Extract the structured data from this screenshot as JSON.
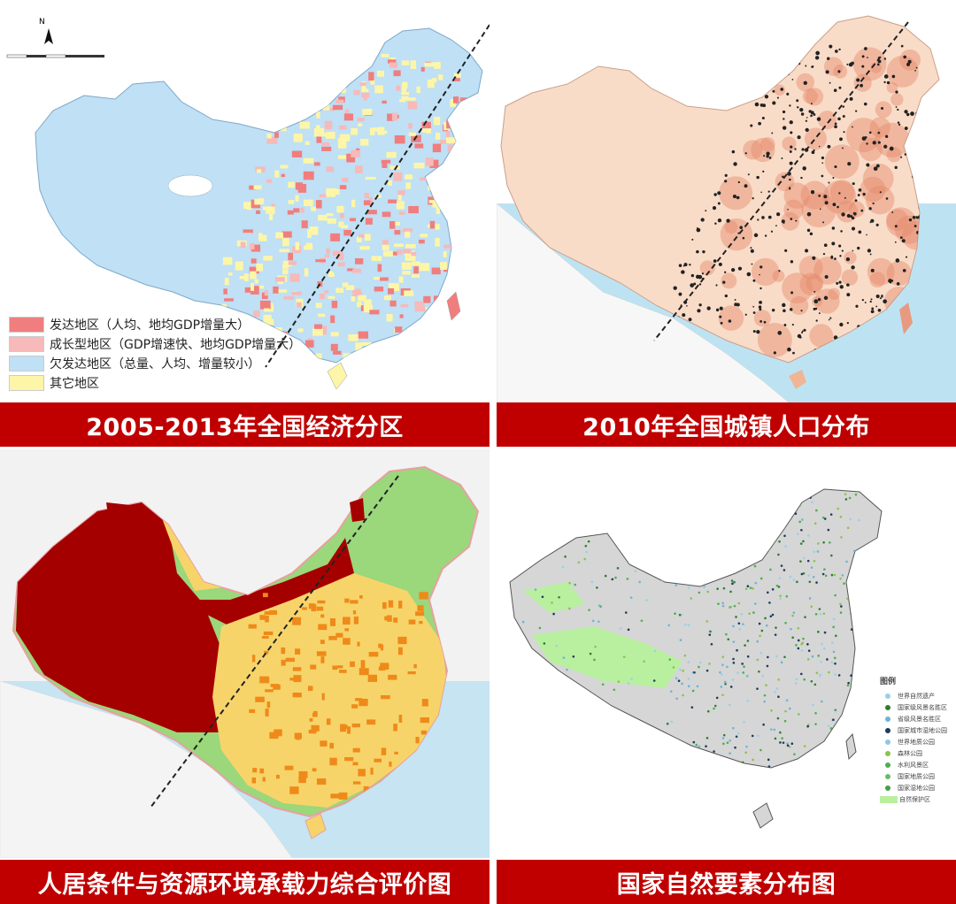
{
  "panels": [
    {
      "id": "economic-zones",
      "caption": "2005-2013年全国经济分区",
      "legend": [
        {
          "label": "发达地区（人均、地均GDP增量大）",
          "color": "#f07e7e"
        },
        {
          "label": "成长型地区（GDP增速快、地均GDP增量大）",
          "color": "#f7b9b9"
        },
        {
          "label": "欠发达地区（总量、人均、增量较小）",
          "color": "#bfe0f5"
        },
        {
          "label": "其它地区",
          "color": "#fdf6a8"
        }
      ],
      "north_label": "N"
    },
    {
      "id": "urban-population",
      "caption": "2010年全国城镇人口分布"
    },
    {
      "id": "habitat-evaluation",
      "caption": "人居条件与资源环境承载力综合评价图"
    },
    {
      "id": "natural-elements",
      "caption": "国家自然要素分布图",
      "legend_title": "图例",
      "legend": [
        {
          "label": "世界自然遗产",
          "color": "#9ad0e6"
        },
        {
          "label": "国家级风景名胜区",
          "color": "#2e7d32"
        },
        {
          "label": "省级风景名胜区",
          "color": "#6fb3d6"
        },
        {
          "label": "国家城市湿地公园",
          "color": "#1f3b5a"
        },
        {
          "label": "世界地质公园",
          "color": "#8dc7e0"
        },
        {
          "label": "森林公园",
          "color": "#8bc34a"
        },
        {
          "label": "水利风景区",
          "color": "#4caf50"
        },
        {
          "label": "国家地质公园",
          "color": "#66bb6a"
        },
        {
          "label": "国家湿地公园",
          "color": "#43a047"
        },
        {
          "label": "自然保护区",
          "color": "#b9f0a0",
          "box": true
        }
      ]
    }
  ],
  "colors": {
    "caption_bg": "#c00000",
    "caption_text": "#ffffff",
    "divider_line": "#222222"
  }
}
